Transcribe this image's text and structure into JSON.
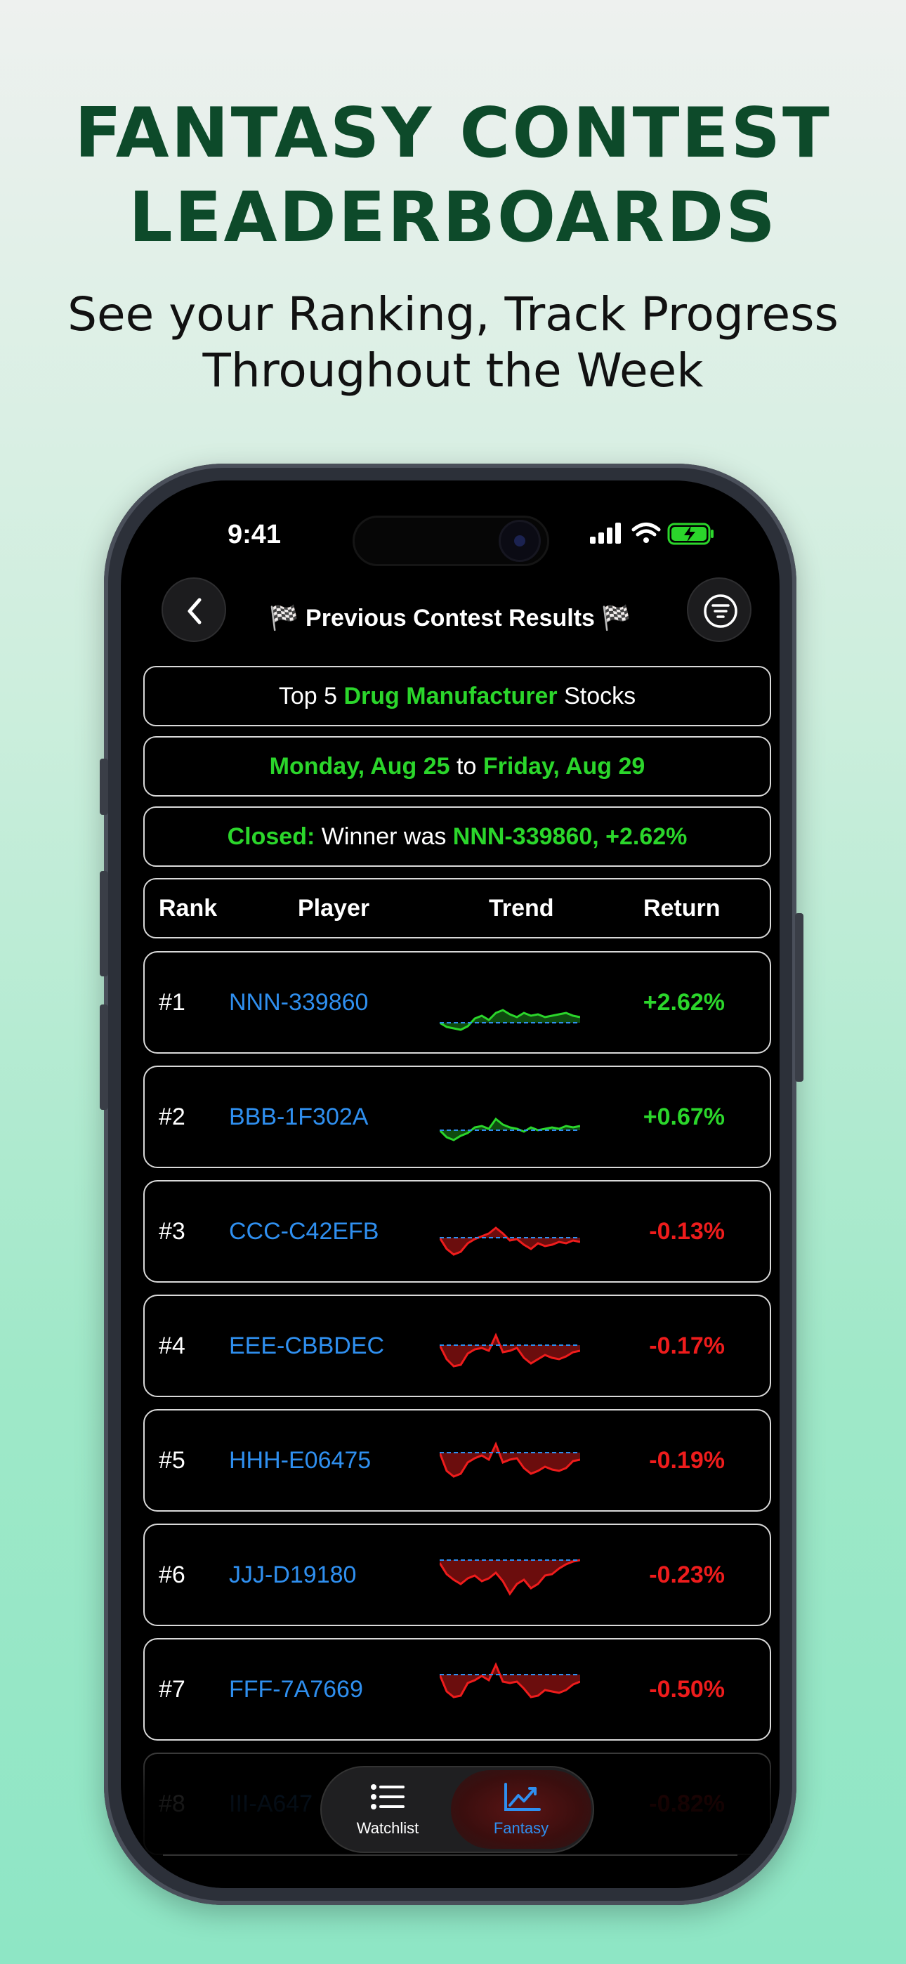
{
  "promo": {
    "headline_line1": "FANTASY CONTEST",
    "headline_line2": "LEADERBOARDS",
    "subhead_line1": "See your Ranking, Track Progress",
    "subhead_line2": "Throughout the Week"
  },
  "status_bar": {
    "time": "9:41"
  },
  "nav": {
    "title": "🏁 Previous Contest Results 🏁"
  },
  "contest": {
    "topic_prefix": "Top 5 ",
    "topic_highlight": "Drug Manufacturer",
    "topic_suffix": " Stocks",
    "start": "Monday, Aug 25",
    "to_word": " to ",
    "end": "Friday, Aug 29",
    "status_label": "Closed:",
    "winner_text": " Winner was ",
    "winner_result": "NNN-339860, +2.62%"
  },
  "table": {
    "headers": {
      "rank": "Rank",
      "player": "Player",
      "trend": "Trend",
      "return": "Return"
    },
    "rows": [
      {
        "rank": "#1",
        "player": "NNN-339860",
        "return": "+2.62%",
        "positive": true
      },
      {
        "rank": "#2",
        "player": "BBB-1F302A",
        "return": "+0.67%",
        "positive": true
      },
      {
        "rank": "#3",
        "player": "CCC-C42EFB",
        "return": "-0.13%",
        "positive": false
      },
      {
        "rank": "#4",
        "player": "EEE-CBBDEC",
        "return": "-0.17%",
        "positive": false
      },
      {
        "rank": "#5",
        "player": "HHH-E06475",
        "return": "-0.19%",
        "positive": false
      },
      {
        "rank": "#6",
        "player": "JJJ-D19180",
        "return": "-0.23%",
        "positive": false
      },
      {
        "rank": "#7",
        "player": "FFF-7A7669",
        "return": "-0.50%",
        "positive": false
      },
      {
        "rank": "#8",
        "player": "III-A647",
        "return": "-0.82%",
        "positive": false
      }
    ]
  },
  "tabbar": {
    "watchlist": "Watchlist",
    "fantasy": "Fantasy"
  },
  "colors": {
    "positive": "#2bd62b",
    "negative": "#ee1c1c",
    "link": "#2f8fef",
    "headline": "#0d4a2a"
  }
}
